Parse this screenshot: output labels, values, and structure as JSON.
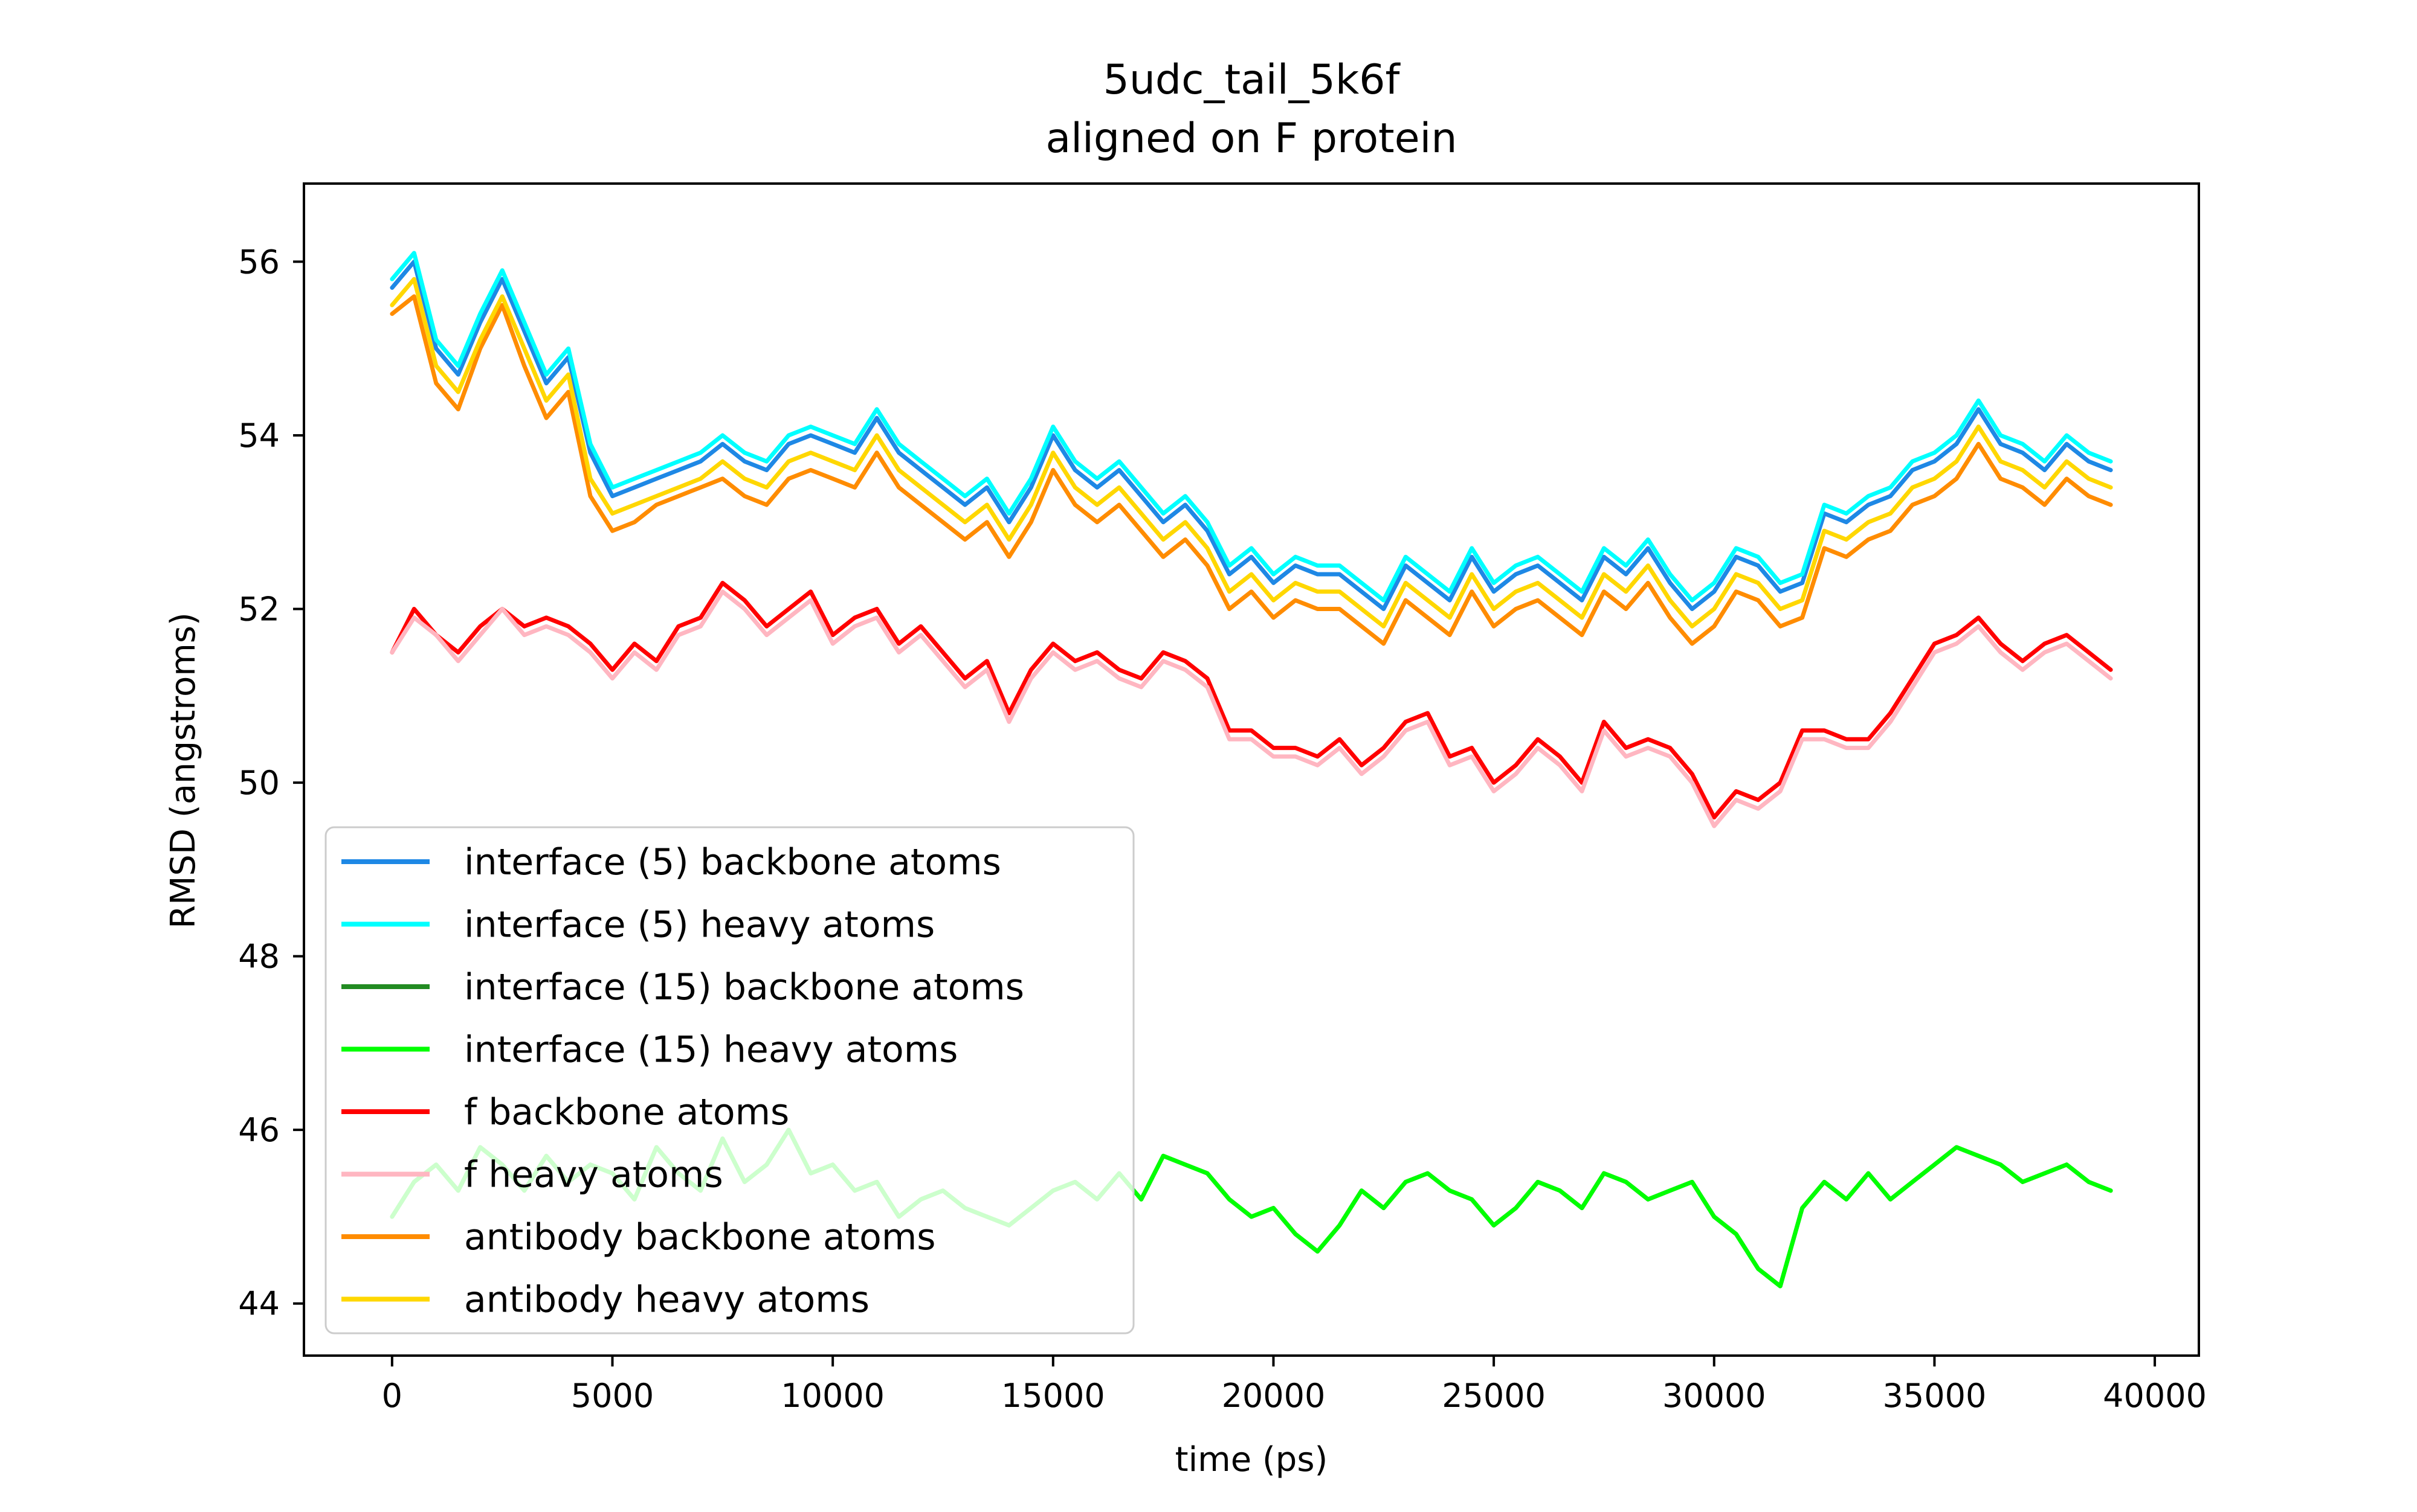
{
  "chart_data": {
    "type": "line",
    "title": "5udc_tail_5k6f",
    "subtitle": "aligned on F protein",
    "xlabel": "time (ps)",
    "ylabel": "RMSD (angstroms)",
    "xlim": [
      -2000,
      41000
    ],
    "ylim": [
      43.4,
      56.9
    ],
    "xticks": [
      0,
      5000,
      10000,
      15000,
      20000,
      25000,
      30000,
      35000,
      40000
    ],
    "xtick_labels": [
      "0",
      "5000",
      "10000",
      "15000",
      "20000",
      "25000",
      "30000",
      "35000",
      "40000"
    ],
    "yticks": [
      44,
      46,
      48,
      50,
      52,
      54,
      56
    ],
    "ytick_labels": [
      "44",
      "46",
      "48",
      "50",
      "52",
      "54",
      "56"
    ],
    "grid": false,
    "legend_position": "lower-left",
    "x": [
      0,
      500,
      1000,
      1500,
      2000,
      2500,
      3000,
      3500,
      4000,
      4500,
      5000,
      5500,
      6000,
      6500,
      7000,
      7500,
      8000,
      8500,
      9000,
      9500,
      10000,
      10500,
      11000,
      11500,
      12000,
      12500,
      13000,
      13500,
      14000,
      14500,
      15000,
      15500,
      16000,
      16500,
      17000,
      17500,
      18000,
      18500,
      19000,
      19500,
      20000,
      20500,
      21000,
      21500,
      22000,
      22500,
      23000,
      23500,
      24000,
      24500,
      25000,
      25500,
      26000,
      26500,
      27000,
      27500,
      28000,
      28500,
      29000,
      29500,
      30000,
      30500,
      31000,
      31500,
      32000,
      32500,
      33000,
      33500,
      34000,
      34500,
      35000,
      35500,
      36000,
      36500,
      37000,
      37500,
      38000,
      38500,
      39000
    ],
    "series": [
      {
        "name": "interface (5) backbone atoms",
        "color": "#1e88e5",
        "values": [
          55.7,
          56.0,
          55.0,
          54.7,
          55.3,
          55.8,
          55.2,
          54.6,
          54.9,
          53.8,
          53.3,
          53.4,
          53.5,
          53.6,
          53.7,
          53.9,
          53.7,
          53.6,
          53.9,
          54.0,
          53.9,
          53.8,
          54.2,
          53.8,
          53.6,
          53.4,
          53.2,
          53.4,
          53.0,
          53.4,
          54.0,
          53.6,
          53.4,
          53.6,
          53.3,
          53.0,
          53.2,
          52.9,
          52.4,
          52.6,
          52.3,
          52.5,
          52.4,
          52.4,
          52.2,
          52.0,
          52.5,
          52.3,
          52.1,
          52.6,
          52.2,
          52.4,
          52.5,
          52.3,
          52.1,
          52.6,
          52.4,
          52.7,
          52.3,
          52.0,
          52.2,
          52.6,
          52.5,
          52.2,
          52.3,
          53.1,
          53.0,
          53.2,
          53.3,
          53.6,
          53.7,
          53.9,
          54.3,
          53.9,
          53.8,
          53.6,
          53.9,
          53.7,
          53.6
        ]
      },
      {
        "name": "interface (5) heavy atoms",
        "color": "#00ffff",
        "values": [
          55.8,
          56.1,
          55.1,
          54.8,
          55.4,
          55.9,
          55.3,
          54.7,
          55.0,
          53.9,
          53.4,
          53.5,
          53.6,
          53.7,
          53.8,
          54.0,
          53.8,
          53.7,
          54.0,
          54.1,
          54.0,
          53.9,
          54.3,
          53.9,
          53.7,
          53.5,
          53.3,
          53.5,
          53.1,
          53.5,
          54.1,
          53.7,
          53.5,
          53.7,
          53.4,
          53.1,
          53.3,
          53.0,
          52.5,
          52.7,
          52.4,
          52.6,
          52.5,
          52.5,
          52.3,
          52.1,
          52.6,
          52.4,
          52.2,
          52.7,
          52.3,
          52.5,
          52.6,
          52.4,
          52.2,
          52.7,
          52.5,
          52.8,
          52.4,
          52.1,
          52.3,
          52.7,
          52.6,
          52.3,
          52.4,
          53.2,
          53.1,
          53.3,
          53.4,
          53.7,
          53.8,
          54.0,
          54.4,
          54.0,
          53.9,
          53.7,
          54.0,
          53.8,
          53.7
        ]
      },
      {
        "name": "interface (15) backbone atoms",
        "color": "#228b22",
        "values": [
          45.0,
          45.4,
          45.6,
          45.3,
          45.8,
          45.6,
          45.3,
          45.7,
          45.4,
          45.6,
          45.5,
          45.2,
          45.8,
          45.5,
          45.3,
          45.9,
          45.4,
          45.6,
          46.0,
          45.5,
          45.6,
          45.3,
          45.4,
          45.0,
          45.2,
          45.3,
          45.1,
          45.0,
          44.9,
          45.1,
          45.3,
          45.4,
          45.2,
          45.5,
          45.2,
          45.7,
          45.6,
          45.5,
          45.2,
          45.0,
          45.1,
          44.8,
          44.6,
          44.9,
          45.3,
          45.1,
          45.4,
          45.5,
          45.3,
          45.2,
          44.9,
          45.1,
          45.4,
          45.3,
          45.1,
          45.5,
          45.4,
          45.2,
          45.3,
          45.4,
          45.0,
          44.8,
          44.4,
          44.2,
          45.1,
          45.4,
          45.2,
          45.5,
          45.2,
          45.4,
          45.6,
          45.8,
          45.7,
          45.6,
          45.4,
          45.5,
          45.6,
          45.4,
          45.3
        ]
      },
      {
        "name": "interface (15) heavy atoms",
        "color": "#00ff00",
        "values": [
          45.0,
          45.4,
          45.6,
          45.3,
          45.8,
          45.6,
          45.3,
          45.7,
          45.4,
          45.6,
          45.5,
          45.2,
          45.8,
          45.5,
          45.3,
          45.9,
          45.4,
          45.6,
          46.0,
          45.5,
          45.6,
          45.3,
          45.4,
          45.0,
          45.2,
          45.3,
          45.1,
          45.0,
          44.9,
          45.1,
          45.3,
          45.4,
          45.2,
          45.5,
          45.2,
          45.7,
          45.6,
          45.5,
          45.2,
          45.0,
          45.1,
          44.8,
          44.6,
          44.9,
          45.3,
          45.1,
          45.4,
          45.5,
          45.3,
          45.2,
          44.9,
          45.1,
          45.4,
          45.3,
          45.1,
          45.5,
          45.4,
          45.2,
          45.3,
          45.4,
          45.0,
          44.8,
          44.4,
          44.2,
          45.1,
          45.4,
          45.2,
          45.5,
          45.2,
          45.4,
          45.6,
          45.8,
          45.7,
          45.6,
          45.4,
          45.5,
          45.6,
          45.4,
          45.3
        ]
      },
      {
        "name": "f backbone atoms",
        "color": "#ff0000",
        "values": [
          51.5,
          52.0,
          51.7,
          51.5,
          51.8,
          52.0,
          51.8,
          51.9,
          51.8,
          51.6,
          51.3,
          51.6,
          51.4,
          51.8,
          51.9,
          52.3,
          52.1,
          51.8,
          52.0,
          52.2,
          51.7,
          51.9,
          52.0,
          51.6,
          51.8,
          51.5,
          51.2,
          51.4,
          50.8,
          51.3,
          51.6,
          51.4,
          51.5,
          51.3,
          51.2,
          51.5,
          51.4,
          51.2,
          50.6,
          50.6,
          50.4,
          50.4,
          50.3,
          50.5,
          50.2,
          50.4,
          50.7,
          50.8,
          50.3,
          50.4,
          50.0,
          50.2,
          50.5,
          50.3,
          50.0,
          50.7,
          50.4,
          50.5,
          50.4,
          50.1,
          49.6,
          49.9,
          49.8,
          50.0,
          50.6,
          50.6,
          50.5,
          50.5,
          50.8,
          51.2,
          51.6,
          51.7,
          51.9,
          51.6,
          51.4,
          51.6,
          51.7,
          51.5,
          51.3
        ]
      },
      {
        "name": "f heavy atoms",
        "color": "#ffb6c1",
        "values": [
          51.5,
          51.9,
          51.7,
          51.4,
          51.7,
          52.0,
          51.7,
          51.8,
          51.7,
          51.5,
          51.2,
          51.5,
          51.3,
          51.7,
          51.8,
          52.2,
          52.0,
          51.7,
          51.9,
          52.1,
          51.6,
          51.8,
          51.9,
          51.5,
          51.7,
          51.4,
          51.1,
          51.3,
          50.7,
          51.2,
          51.5,
          51.3,
          51.4,
          51.2,
          51.1,
          51.4,
          51.3,
          51.1,
          50.5,
          50.5,
          50.3,
          50.3,
          50.2,
          50.4,
          50.1,
          50.3,
          50.6,
          50.7,
          50.2,
          50.3,
          49.9,
          50.1,
          50.4,
          50.2,
          49.9,
          50.6,
          50.3,
          50.4,
          50.3,
          50.0,
          49.5,
          49.8,
          49.7,
          49.9,
          50.5,
          50.5,
          50.4,
          50.4,
          50.7,
          51.1,
          51.5,
          51.6,
          51.8,
          51.5,
          51.3,
          51.5,
          51.6,
          51.4,
          51.2
        ]
      },
      {
        "name": "antibody backbone atoms",
        "color": "#ff8c00",
        "values": [
          55.4,
          55.6,
          54.6,
          54.3,
          55.0,
          55.5,
          54.8,
          54.2,
          54.5,
          53.3,
          52.9,
          53.0,
          53.2,
          53.3,
          53.4,
          53.5,
          53.3,
          53.2,
          53.5,
          53.6,
          53.5,
          53.4,
          53.8,
          53.4,
          53.2,
          53.0,
          52.8,
          53.0,
          52.6,
          53.0,
          53.6,
          53.2,
          53.0,
          53.2,
          52.9,
          52.6,
          52.8,
          52.5,
          52.0,
          52.2,
          51.9,
          52.1,
          52.0,
          52.0,
          51.8,
          51.6,
          52.1,
          51.9,
          51.7,
          52.2,
          51.8,
          52.0,
          52.1,
          51.9,
          51.7,
          52.2,
          52.0,
          52.3,
          51.9,
          51.6,
          51.8,
          52.2,
          52.1,
          51.8,
          51.9,
          52.7,
          52.6,
          52.8,
          52.9,
          53.2,
          53.3,
          53.5,
          53.9,
          53.5,
          53.4,
          53.2,
          53.5,
          53.3,
          53.2
        ]
      },
      {
        "name": "antibody heavy atoms",
        "color": "#ffd700",
        "values": [
          55.5,
          55.8,
          54.8,
          54.5,
          55.1,
          55.6,
          55.0,
          54.4,
          54.7,
          53.5,
          53.1,
          53.2,
          53.3,
          53.4,
          53.5,
          53.7,
          53.5,
          53.4,
          53.7,
          53.8,
          53.7,
          53.6,
          54.0,
          53.6,
          53.4,
          53.2,
          53.0,
          53.2,
          52.8,
          53.2,
          53.8,
          53.4,
          53.2,
          53.4,
          53.1,
          52.8,
          53.0,
          52.7,
          52.2,
          52.4,
          52.1,
          52.3,
          52.2,
          52.2,
          52.0,
          51.8,
          52.3,
          52.1,
          51.9,
          52.4,
          52.0,
          52.2,
          52.3,
          52.1,
          51.9,
          52.4,
          52.2,
          52.5,
          52.1,
          51.8,
          52.0,
          52.4,
          52.3,
          52.0,
          52.1,
          52.9,
          52.8,
          53.0,
          53.1,
          53.4,
          53.5,
          53.7,
          54.1,
          53.7,
          53.6,
          53.4,
          53.7,
          53.5,
          53.4
        ]
      }
    ]
  }
}
